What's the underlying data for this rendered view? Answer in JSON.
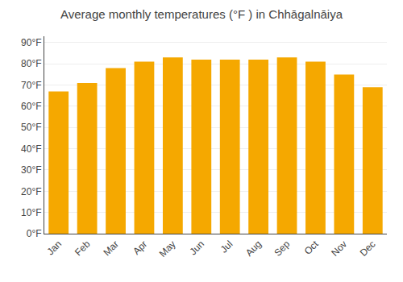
{
  "chart_data": {
    "type": "bar",
    "title": "Average monthly temperatures (°F ) in Chhāgalnāiya",
    "categories": [
      "Jan",
      "Feb",
      "Mar",
      "Apr",
      "May",
      "Jun",
      "Jul",
      "Aug",
      "Sep",
      "Oct",
      "Nov",
      "Dec"
    ],
    "values": [
      67,
      71,
      78,
      81,
      83,
      82,
      82,
      82,
      83,
      81,
      75,
      69
    ],
    "color": "#F5A800",
    "ylim": [
      0,
      93
    ],
    "yticks": [
      {
        "value": 0,
        "label": "0°F"
      },
      {
        "value": 10,
        "label": "10°F"
      },
      {
        "value": 20,
        "label": "20°F"
      },
      {
        "value": 30,
        "label": "30°F"
      },
      {
        "value": 40,
        "label": "40°F"
      },
      {
        "value": 50,
        "label": "50°F"
      },
      {
        "value": 60,
        "label": "60°F"
      },
      {
        "value": 70,
        "label": "70°F"
      },
      {
        "value": 80,
        "label": "80°F"
      },
      {
        "value": 90,
        "label": "90°F"
      }
    ],
    "grid": true
  }
}
